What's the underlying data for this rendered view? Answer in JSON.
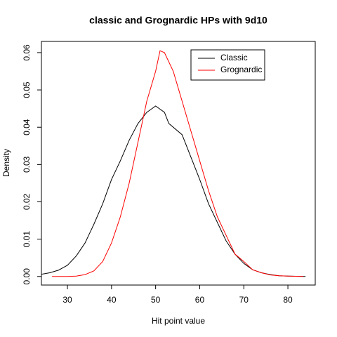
{
  "chart_data": {
    "type": "line",
    "title": "classic and Grognardic HPs with 9d10",
    "x_label": "Hit point value",
    "y_label": "Density",
    "xlim": [
      24.1,
      86.2
    ],
    "ylim": [
      -0.0023,
      0.063
    ],
    "xticks": [
      30,
      40,
      50,
      60,
      70,
      80
    ],
    "yticks": [
      {
        "value": 0,
        "label": "0.00"
      },
      0.01,
      0.02,
      0.03,
      0.04,
      0.05,
      0.06
    ],
    "legend": "top-right",
    "series": [
      {
        "name": "Classic",
        "color": "#000000",
        "x": [
          24.1,
          26,
          28,
          30,
          32,
          34,
          36,
          38,
          40,
          42,
          44,
          46,
          48,
          50,
          52,
          53,
          56,
          58,
          60,
          62,
          64,
          66,
          68,
          70,
          72,
          74,
          76,
          78,
          80,
          84
        ],
        "values": [
          0.0006,
          0.001,
          0.0017,
          0.003,
          0.0055,
          0.009,
          0.014,
          0.0195,
          0.026,
          0.031,
          0.0365,
          0.041,
          0.044,
          0.0457,
          0.044,
          0.041,
          0.038,
          0.032,
          0.026,
          0.0195,
          0.0145,
          0.0095,
          0.006,
          0.0035,
          0.0018,
          0.001,
          0.0005,
          0.0002,
          0.0001,
          0
        ]
      },
      {
        "name": "Grognardic",
        "color": "#ff0000",
        "x": [
          26.5,
          30,
          32,
          34,
          36,
          38,
          40,
          42,
          44,
          46,
          48,
          50,
          51,
          52,
          54,
          56,
          58,
          60,
          62,
          64,
          66,
          68,
          70,
          72,
          74,
          76,
          78,
          80,
          83.5
        ],
        "values": [
          0,
          0,
          0.0001,
          0.0005,
          0.0015,
          0.004,
          0.009,
          0.016,
          0.025,
          0.036,
          0.047,
          0.055,
          0.0605,
          0.06,
          0.055,
          0.047,
          0.039,
          0.031,
          0.023,
          0.016,
          0.011,
          0.006,
          0.004,
          0.0018,
          0.001,
          0.0004,
          0.0002,
          0.0001,
          0
        ]
      }
    ]
  }
}
